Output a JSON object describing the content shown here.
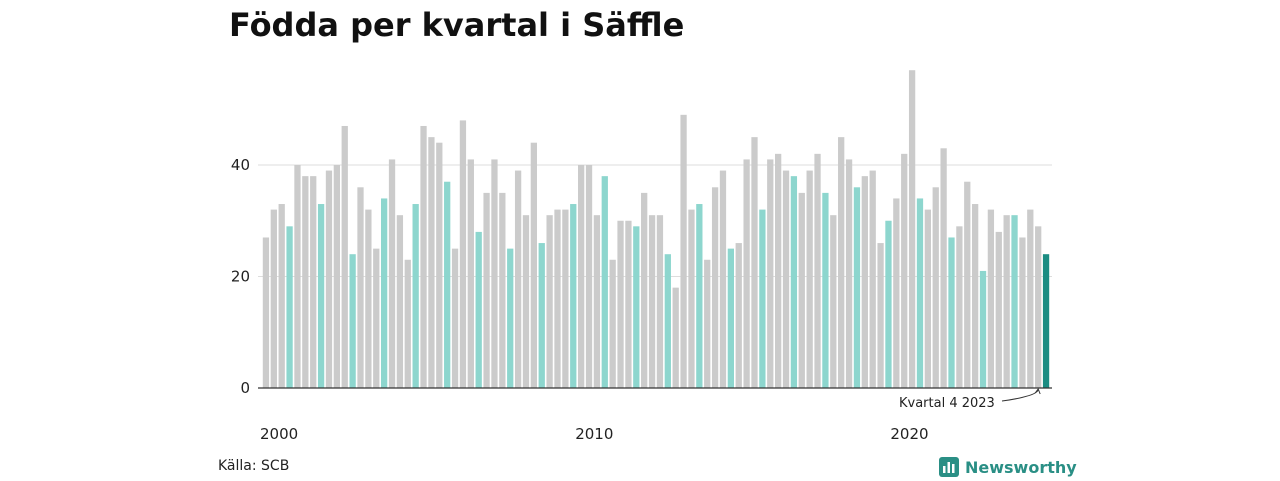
{
  "title": "Födda per kvartal i Säffle",
  "source": "Källa: SCB",
  "brand": "Newsworthy",
  "colors": {
    "bar_default": "#cbcbcb",
    "bar_q4": "#8dd6ce",
    "bar_latest": "#1a8c82",
    "grid": "#dddddd",
    "axis": "#333333",
    "brand": "#2a8f85"
  },
  "chart_data": {
    "type": "bar",
    "title": "Födda per kvartal i Säffle",
    "xlabel": "",
    "ylabel": "",
    "ylim": [
      0,
      60
    ],
    "yticks": [
      0,
      20,
      40
    ],
    "xtick_labels": [
      "2000",
      "2010",
      "2020"
    ],
    "first_period": "2000 Q1",
    "highlight": "Kvartal 4 (every fourth bar) highlighted; latest value darker",
    "annotation": "Kvartal 4 2023",
    "values": [
      27,
      32,
      33,
      29,
      40,
      38,
      38,
      33,
      39,
      40,
      47,
      24,
      36,
      32,
      25,
      34,
      41,
      31,
      23,
      33,
      47,
      45,
      44,
      37,
      25,
      48,
      41,
      28,
      35,
      41,
      35,
      25,
      39,
      31,
      44,
      26,
      31,
      32,
      32,
      33,
      40,
      40,
      31,
      38,
      23,
      30,
      30,
      29,
      35,
      31,
      31,
      24,
      18,
      49,
      32,
      33,
      23,
      36,
      39,
      25,
      26,
      41,
      45,
      32,
      41,
      42,
      39,
      38,
      35,
      39,
      42,
      35,
      31,
      45,
      41,
      36,
      38,
      39,
      26,
      30,
      34,
      42,
      57,
      34,
      32,
      36,
      43,
      27,
      29,
      37,
      33,
      21,
      32,
      28,
      31,
      31,
      27,
      32,
      29,
      24
    ]
  }
}
